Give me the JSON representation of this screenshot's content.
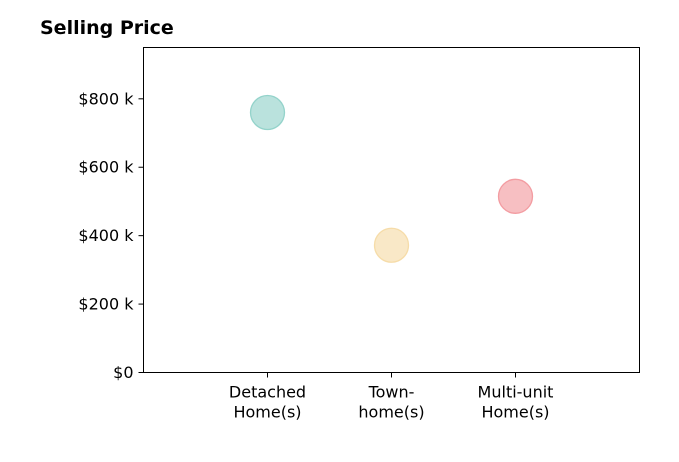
{
  "chart_data": {
    "type": "scatter",
    "title": "Selling Price",
    "xlabel": "",
    "ylabel": "",
    "categories": [
      [
        "Detached",
        "Home(s)"
      ],
      [
        "Town-",
        "home(s)"
      ],
      [
        "Multi-unit",
        "Home(s)"
      ]
    ],
    "values": [
      760000,
      372000,
      515000
    ],
    "colors": [
      "#8ccfc6",
      "#f5d9a2",
      "#f2959a"
    ],
    "ylim": [
      0,
      950000
    ],
    "yticks": [
      0,
      200000,
      400000,
      600000,
      800000
    ],
    "ytick_labels": [
      "$0",
      "$200 k",
      "$400 k",
      "$600 k",
      "$800 k"
    ],
    "xlim": [
      -1,
      3
    ],
    "grid": false,
    "legend": "none"
  }
}
